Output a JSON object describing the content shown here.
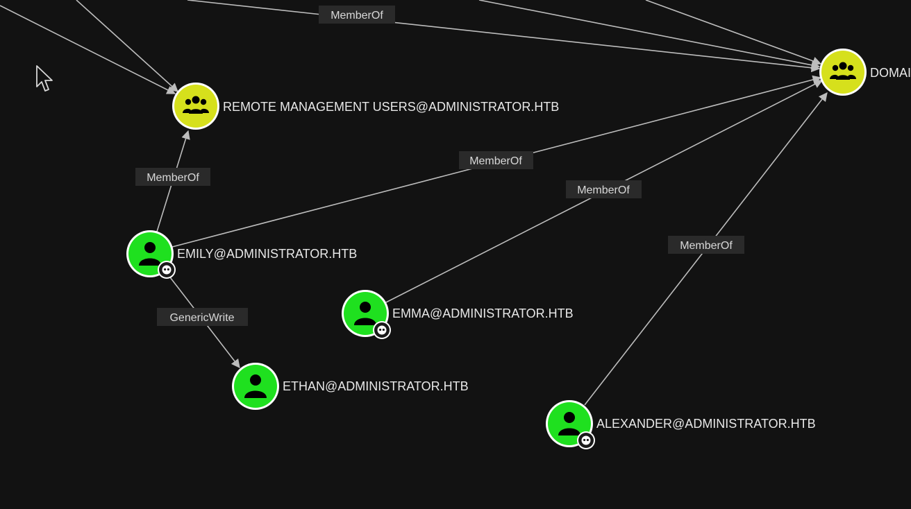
{
  "colors": {
    "background": "#121212",
    "user_node": "#1fe01f",
    "group_node": "#d6e01c",
    "edge": "#bdbdbd",
    "edge_label_bg": "#2a2a2a"
  },
  "nodes": {
    "remote_mgmt": {
      "label": "REMOTE MANAGEMENT USERS@ADMINISTRATOR.HTB",
      "kind": "group",
      "icon": "group-icon"
    },
    "domain": {
      "label": "DOMAI",
      "kind": "group",
      "icon": "group-icon"
    },
    "emily": {
      "label": "EMILY@ADMINISTRATOR.HTB",
      "kind": "user",
      "icon": "user-icon",
      "badge": "skull-badge-icon"
    },
    "emma": {
      "label": "EMMA@ADMINISTRATOR.HTB",
      "kind": "user",
      "icon": "user-icon",
      "badge": "skull-badge-icon"
    },
    "ethan": {
      "label": "ETHAN@ADMINISTRATOR.HTB",
      "kind": "user",
      "icon": "user-icon"
    },
    "alexander": {
      "label": "ALEXANDER@ADMINISTRATOR.HTB",
      "kind": "user",
      "icon": "user-icon",
      "badge": "skull-badge-icon"
    }
  },
  "edges": {
    "top_memberof": "MemberOf",
    "emily_remote": "MemberOf",
    "emily_domain": "MemberOf",
    "emma_domain": "MemberOf",
    "alexander_domain": "MemberOf",
    "emily_ethan": "GenericWrite"
  },
  "cursor": "mouse-pointer-icon"
}
